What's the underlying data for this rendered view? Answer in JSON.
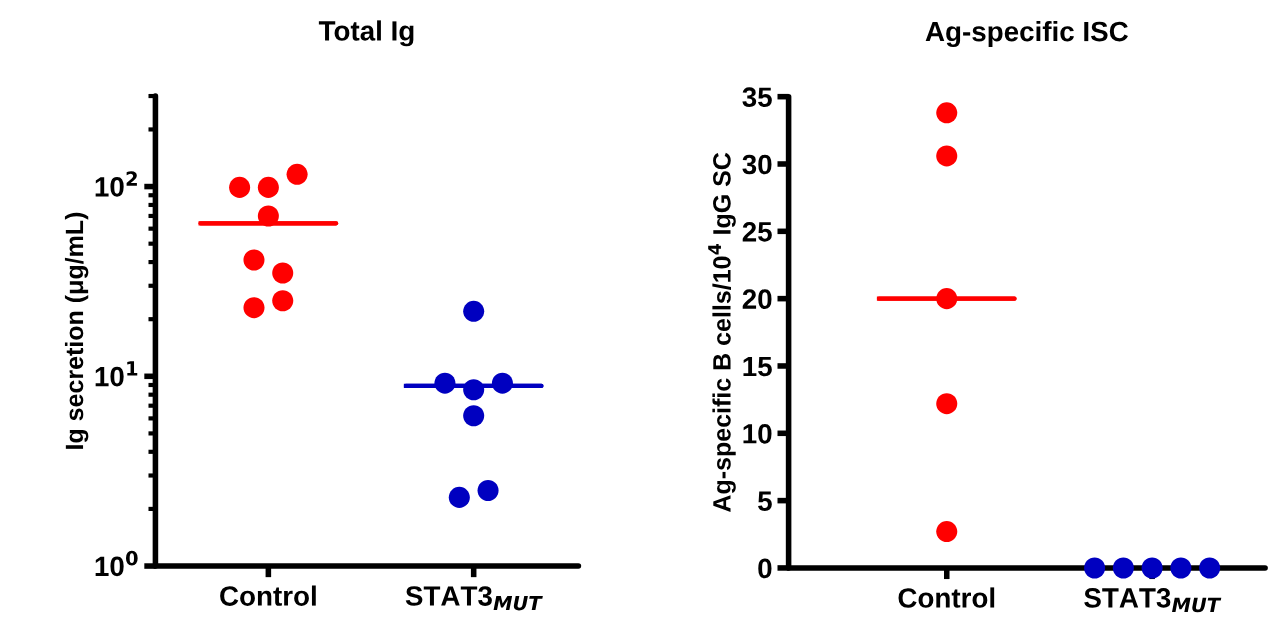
{
  "chart_data": [
    {
      "type": "scatter",
      "title": "Total Ig",
      "ylabel": "Ig secretion (μg/mL)",
      "categories": [
        "Control",
        "STAT3$_{MUT}$"
      ],
      "log": "y",
      "ylim": [
        1,
        300
      ],
      "yticks": [
        {
          "value": 1,
          "label": "10$^{0}$"
        },
        {
          "value": 10,
          "label": "10$^{1}$"
        },
        {
          "value": 100,
          "label": "10$^{2}$"
        }
      ],
      "marker": "circle",
      "series": [
        {
          "color": "#ff0000",
          "x": [
            "Control",
            "Control",
            "Control",
            "Control",
            "Control",
            "Control",
            "Control",
            "Control"
          ],
          "values": [
            99,
            99,
            116,
            70,
            41,
            35,
            23,
            25
          ]
        },
        {
          "color": "#0000c0",
          "x": [
            "STAT3$_{MUT}$",
            "STAT3$_{MUT}$",
            "STAT3$_{MUT}$",
            "STAT3$_{MUT}$",
            "STAT3$_{MUT}$",
            "STAT3$_{MUT}$",
            "STAT3$_{MUT}$"
          ],
          "values": [
            22,
            9.2,
            8.5,
            9.2,
            6.2,
            2.3,
            2.5
          ]
        },
        {
          "type": "box",
          "color": "#ff0000",
          "boxes": [
            {
              "low": 64,
              "q1": 64,
              "median": 64,
              "q3": 64,
              "high": 64
            },
            null
          ]
        },
        {
          "type": "box",
          "color": "#0000c0",
          "boxes": [
            null,
            {
              "low": 8.9,
              "q1": 8.9,
              "median": 8.9,
              "q3": 8.9,
              "high": 8.9
            }
          ]
        }
      ]
    },
    {
      "type": "scatter",
      "title": "Ag-specific ISC",
      "ylabel": "Ag-specific B cells/10$^{4}$ IgG SC",
      "categories": [
        "Control",
        "STAT3$_{MUT}$"
      ],
      "ylim": [
        0,
        35
      ],
      "yticks": [
        0,
        5,
        10,
        15,
        20,
        25,
        30,
        35
      ],
      "marker": "circle",
      "series": [
        {
          "color": "#ff0000",
          "x": [
            "Control",
            "Control",
            "Control",
            "Control",
            "Control"
          ],
          "values": [
            33.8,
            30.6,
            20.0,
            12.2,
            2.7
          ]
        },
        {
          "color": "#0000c0",
          "x": [
            "STAT3$_{MUT}$",
            "STAT3$_{MUT}$",
            "STAT3$_{MUT}$",
            "STAT3$_{MUT}$",
            "STAT3$_{MUT}$"
          ],
          "values": [
            0,
            0,
            0,
            0,
            0
          ]
        },
        {
          "type": "box",
          "color": "#ff0000",
          "boxes": [
            {
              "low": 20.0,
              "q1": 20.0,
              "median": 20.0,
              "q3": 20.0,
              "high": 20.0
            },
            null
          ]
        }
      ]
    }
  ]
}
